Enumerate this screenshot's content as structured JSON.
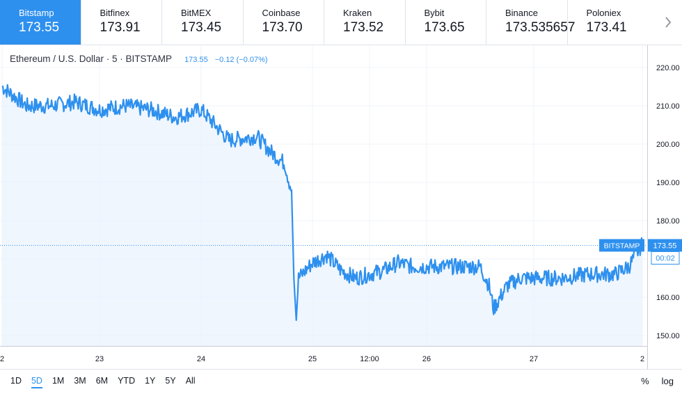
{
  "tabs": [
    {
      "name": "Bitstamp",
      "price": "173.55",
      "active": true
    },
    {
      "name": "Bitfinex",
      "price": "173.91"
    },
    {
      "name": "BitMEX",
      "price": "173.45"
    },
    {
      "name": "Coinbase",
      "price": "173.70"
    },
    {
      "name": "Kraken",
      "price": "173.52"
    },
    {
      "name": "Bybit",
      "price": "173.65"
    },
    {
      "name": "Binance",
      "price": "173.535657"
    },
    {
      "name": "Poloniex",
      "price": "173.41"
    }
  ],
  "legend": {
    "symbol": "Ethereum / U.S. Dollar · 5 · BITSTAMP",
    "last": "173.55",
    "change": "−0.12 (−0.07%)"
  },
  "price_label": {
    "exchange": "BITSTAMP",
    "price": "173.55",
    "countdown": "00:02"
  },
  "ranges": [
    "1D",
    "5D",
    "1M",
    "3M",
    "6M",
    "YTD",
    "1Y",
    "5Y",
    "All"
  ],
  "active_range": "5D",
  "scale_options": [
    "%",
    "log"
  ],
  "colors": {
    "line": "#2e90ee",
    "accent": "#2e90ee",
    "fill": "#eaf3fd"
  },
  "chart_data": {
    "type": "area",
    "title": "Ethereum / U.S. Dollar · 5 · BITSTAMP",
    "ylim": [
      147,
      224
    ],
    "y_ticks": [
      "150.00",
      "160.00",
      "170.00",
      "180.00",
      "190.00",
      "200.00",
      "210.00",
      "220.00"
    ],
    "x_ticks": [
      "2",
      "23",
      "24",
      "25",
      "12:00",
      "26",
      "27",
      "2"
    ],
    "grid": true,
    "x": [
      "22 00:00",
      "22 06:00",
      "22 12:00",
      "22 18:00",
      "23 00:00",
      "23 06:00",
      "23 12:00",
      "23 18:00",
      "24 00:00",
      "24 06:00",
      "24 12:00",
      "24 15:00",
      "24 18:00",
      "24 19:00",
      "24 19:30",
      "24 20:00",
      "24 20:30",
      "24 21:00",
      "25 00:00",
      "25 03:00",
      "25 06:00",
      "25 09:00",
      "25 12:00",
      "25 15:00",
      "25 18:00",
      "25 21:00",
      "26 00:00",
      "26 06:00",
      "26 12:00",
      "26 14:00",
      "26 15:00",
      "26 18:00",
      "26 21:00",
      "27 00:00",
      "27 06:00",
      "27 12:00",
      "27 18:00",
      "27 21:00",
      "28 00:00"
    ],
    "series": [
      {
        "values": [
          215,
          210,
          210,
          211,
          209,
          210,
          209,
          207,
          209,
          201,
          202,
          198,
          195,
          190,
          188,
          165,
          154,
          165,
          169,
          171,
          167,
          165,
          166,
          167,
          169,
          168,
          168,
          168,
          168,
          163,
          157,
          163,
          165,
          165,
          165,
          166,
          166,
          168,
          174
        ]
      }
    ]
  }
}
